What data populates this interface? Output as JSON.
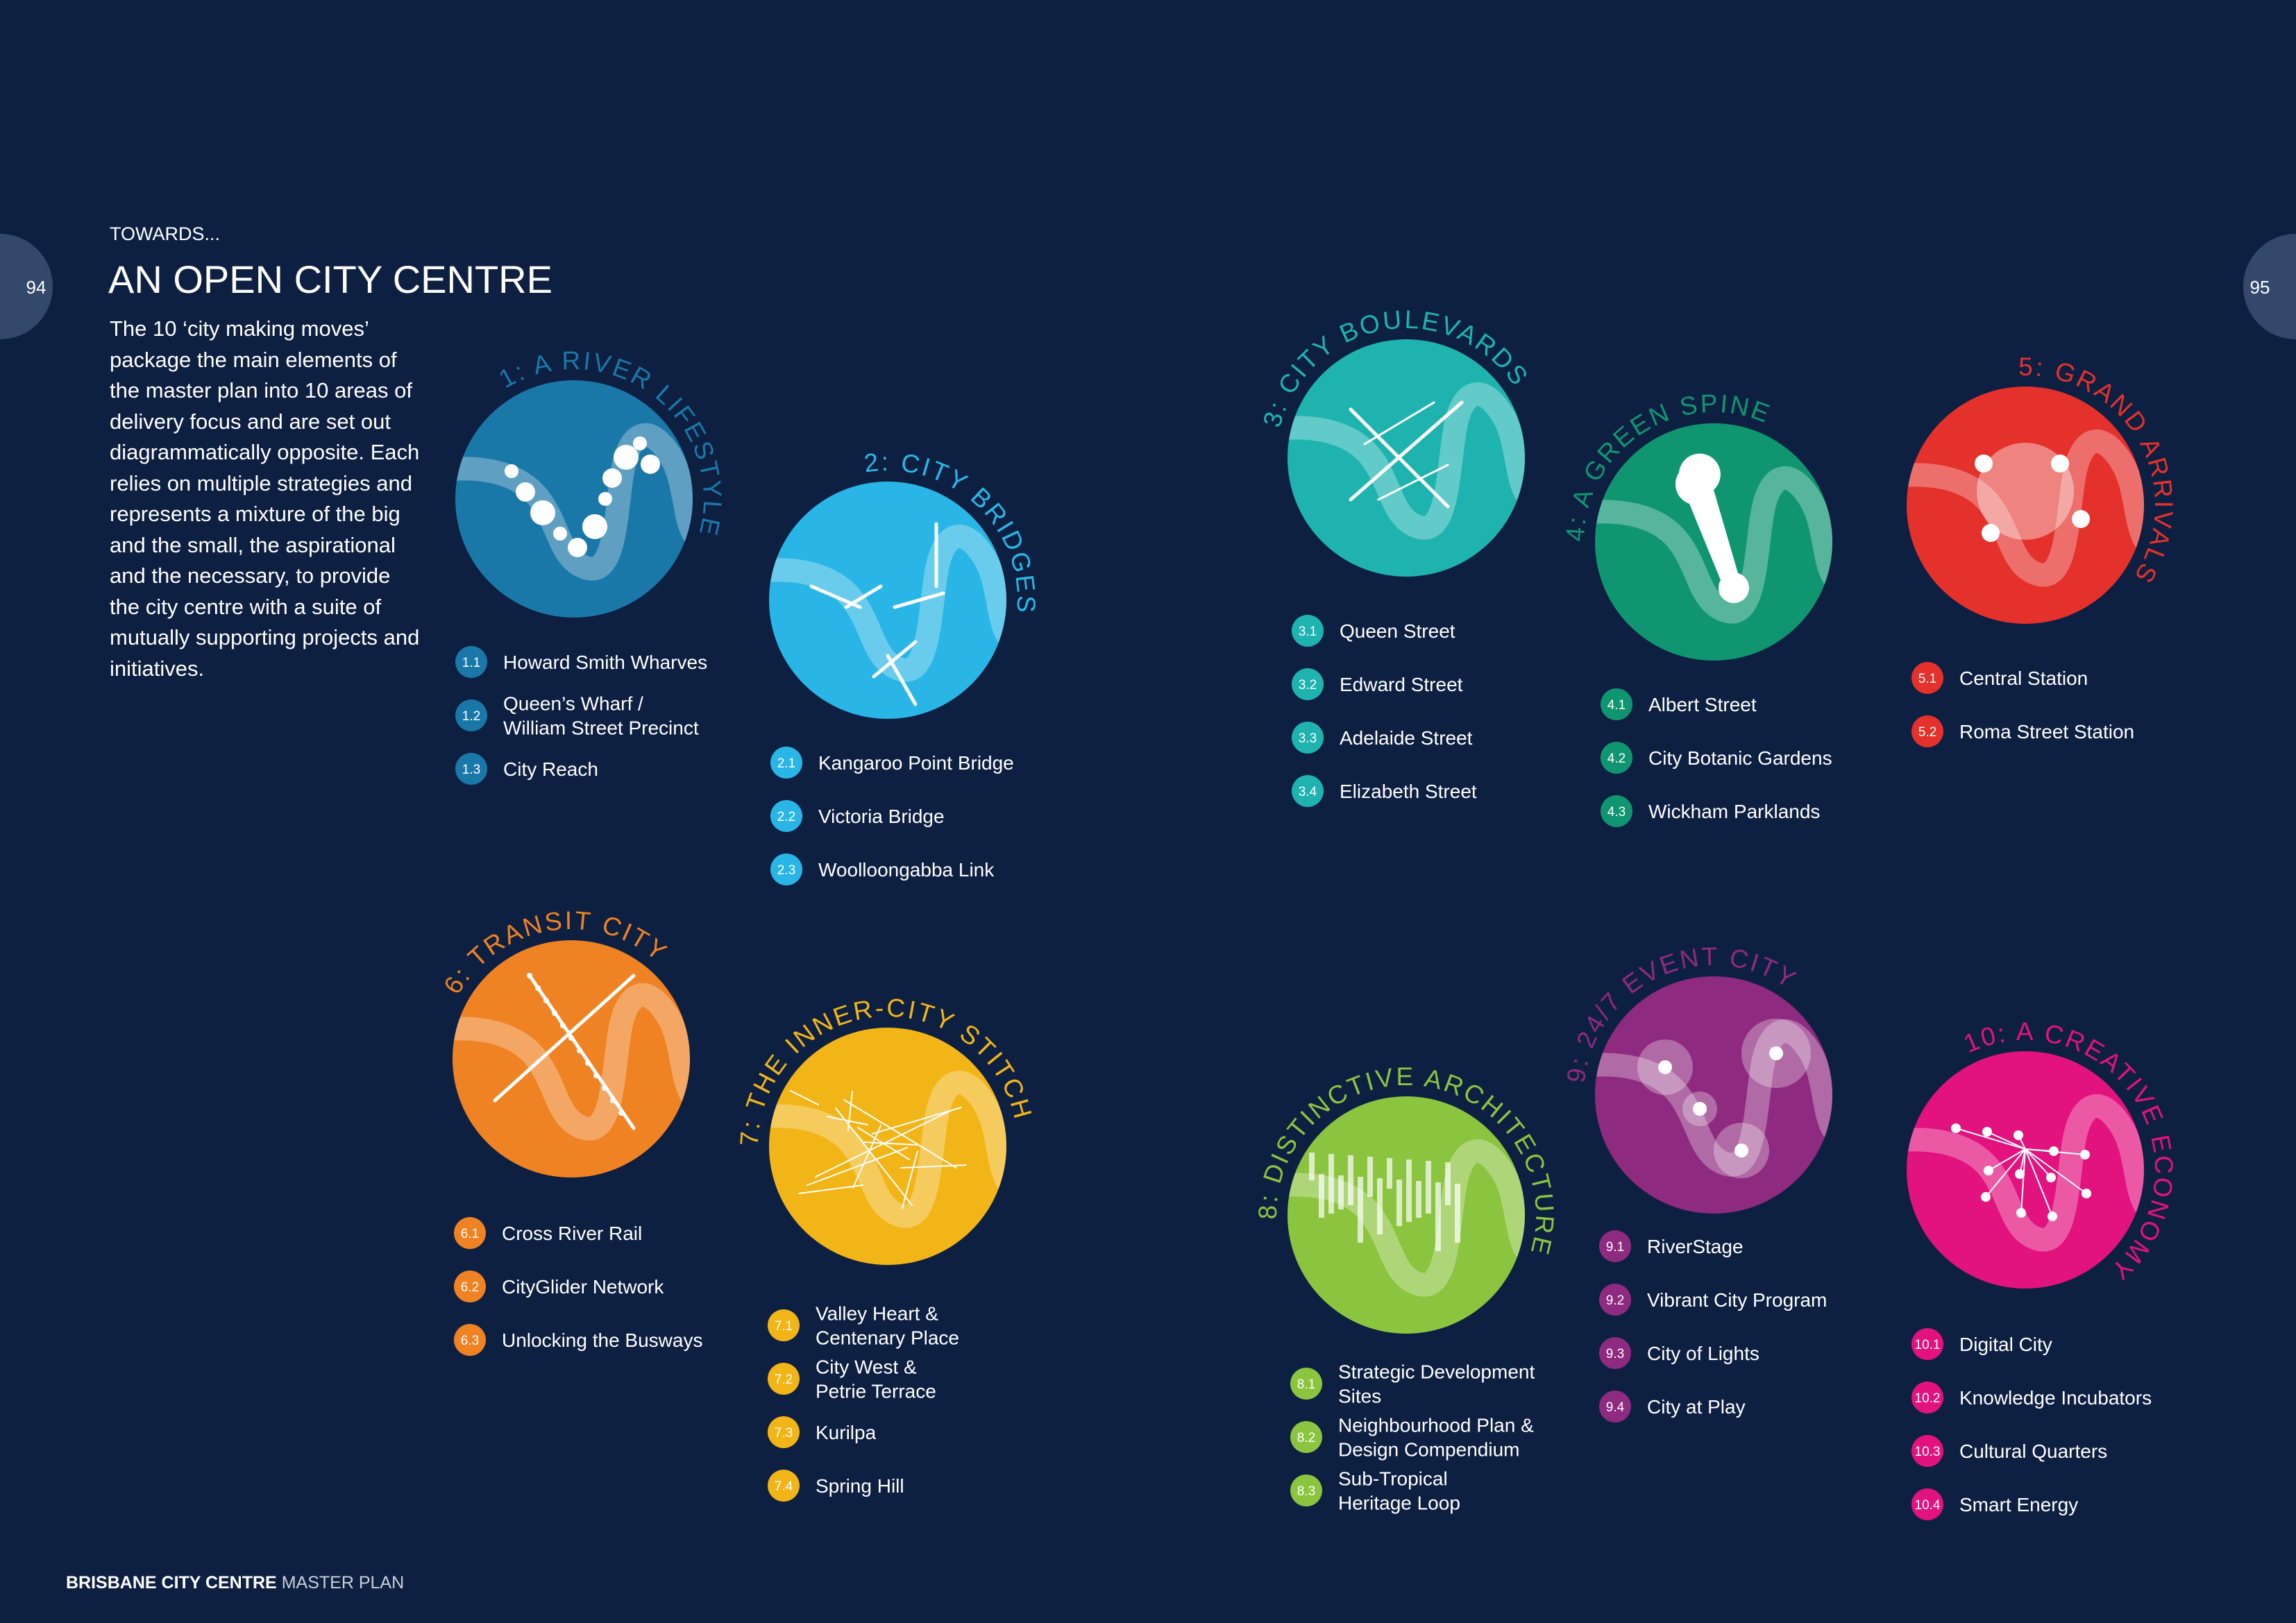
{
  "page_numbers": {
    "left": "94",
    "right": "95"
  },
  "header": {
    "kicker": "TOWARDS...",
    "title": "AN OPEN CITY CENTRE"
  },
  "intro": "The 10 ‘city making moves’ package the main elements of the master plan into 10 areas of delivery focus and are set out diagrammatically opposite. Each relies on multiple strategies and represents a mixture of the big and the small, the aspirational and the necessary, to provide the city centre with a suite of mutually supporting projects and initiatives.",
  "moves": [
    {
      "title": "1: A RIVER LIFESTYLE",
      "color": "#1a78a8",
      "items": [
        {
          "num": "1.1",
          "lines": [
            "Howard Smith Wharves"
          ]
        },
        {
          "num": "1.2",
          "lines": [
            "Queen’s Wharf /",
            "William Street Precinct"
          ]
        },
        {
          "num": "1.3",
          "lines": [
            "City Reach"
          ]
        }
      ]
    },
    {
      "title": "2: CITY BRIDGES",
      "color": "#29b6e6",
      "items": [
        {
          "num": "2.1",
          "lines": [
            "Kangaroo Point Bridge"
          ]
        },
        {
          "num": "2.2",
          "lines": [
            "Victoria Bridge"
          ]
        },
        {
          "num": "2.3",
          "lines": [
            "Woolloongabba Link"
          ]
        }
      ]
    },
    {
      "title": "3: CITY BOULEVARDS",
      "color": "#1fb3b0",
      "items": [
        {
          "num": "3.1",
          "lines": [
            "Queen Street"
          ]
        },
        {
          "num": "3.2",
          "lines": [
            "Edward Street"
          ]
        },
        {
          "num": "3.3",
          "lines": [
            "Adelaide Street"
          ]
        },
        {
          "num": "3.4",
          "lines": [
            "Elizabeth Street"
          ]
        }
      ]
    },
    {
      "title": "4: A GREEN SPINE",
      "color": "#0f9670",
      "items": [
        {
          "num": "4.1",
          "lines": [
            "Albert Street"
          ]
        },
        {
          "num": "4.2",
          "lines": [
            "City Botanic Gardens"
          ]
        },
        {
          "num": "4.3",
          "lines": [
            "Wickham Parklands"
          ]
        }
      ]
    },
    {
      "title": "5: GRAND ARRIVALS",
      "color": "#e4312b",
      "items": [
        {
          "num": "5.1",
          "lines": [
            "Central Station"
          ]
        },
        {
          "num": "5.2",
          "lines": [
            "Roma Street Station"
          ]
        }
      ]
    },
    {
      "title": "6: TRANSIT CITY",
      "color": "#ef8222",
      "items": [
        {
          "num": "6.1",
          "lines": [
            "Cross River Rail"
          ]
        },
        {
          "num": "6.2",
          "lines": [
            "CityGlider Network"
          ]
        },
        {
          "num": "6.3",
          "lines": [
            "Unlocking the Busways"
          ]
        }
      ]
    },
    {
      "title": "7: THE INNER-CITY STITCH",
      "color": "#f1b517",
      "items": [
        {
          "num": "7.1",
          "lines": [
            "Valley Heart &",
            "Centenary Place"
          ]
        },
        {
          "num": "7.2",
          "lines": [
            "City West &",
            "Petrie Terrace"
          ]
        },
        {
          "num": "7.3",
          "lines": [
            "Kurilpa"
          ]
        },
        {
          "num": "7.4",
          "lines": [
            "Spring Hill"
          ]
        }
      ]
    },
    {
      "title": "8: DISTINCTIVE ARCHITECTURE",
      "color": "#8bc43f",
      "items": [
        {
          "num": "8.1",
          "lines": [
            "Strategic Development",
            "Sites"
          ]
        },
        {
          "num": "8.2",
          "lines": [
            "Neighbourhood Plan &",
            "Design Compendium"
          ]
        },
        {
          "num": "8.3",
          "lines": [
            "Sub-Tropical",
            "Heritage Loop"
          ]
        }
      ]
    },
    {
      "title": "9: 24/7 EVENT CITY",
      "color": "#8e2a7f",
      "items": [
        {
          "num": "9.1",
          "lines": [
            "RiverStage"
          ]
        },
        {
          "num": "9.2",
          "lines": [
            "Vibrant City Program"
          ]
        },
        {
          "num": "9.3",
          "lines": [
            "City of Lights"
          ]
        },
        {
          "num": "9.4",
          "lines": [
            "City at Play"
          ]
        }
      ]
    },
    {
      "title": "10: A CREATIVE ECONOMY",
      "color": "#e2127e",
      "items": [
        {
          "num": "10.1",
          "lines": [
            "Digital City"
          ]
        },
        {
          "num": "10.2",
          "lines": [
            "Knowledge Incubators"
          ]
        },
        {
          "num": "10.3",
          "lines": [
            "Cultural Quarters"
          ]
        },
        {
          "num": "10.4",
          "lines": [
            "Smart Energy"
          ]
        }
      ]
    }
  ],
  "footer": {
    "brand": "BRISBANE CITY CENTRE",
    "subtitle": "MASTER PLAN"
  }
}
